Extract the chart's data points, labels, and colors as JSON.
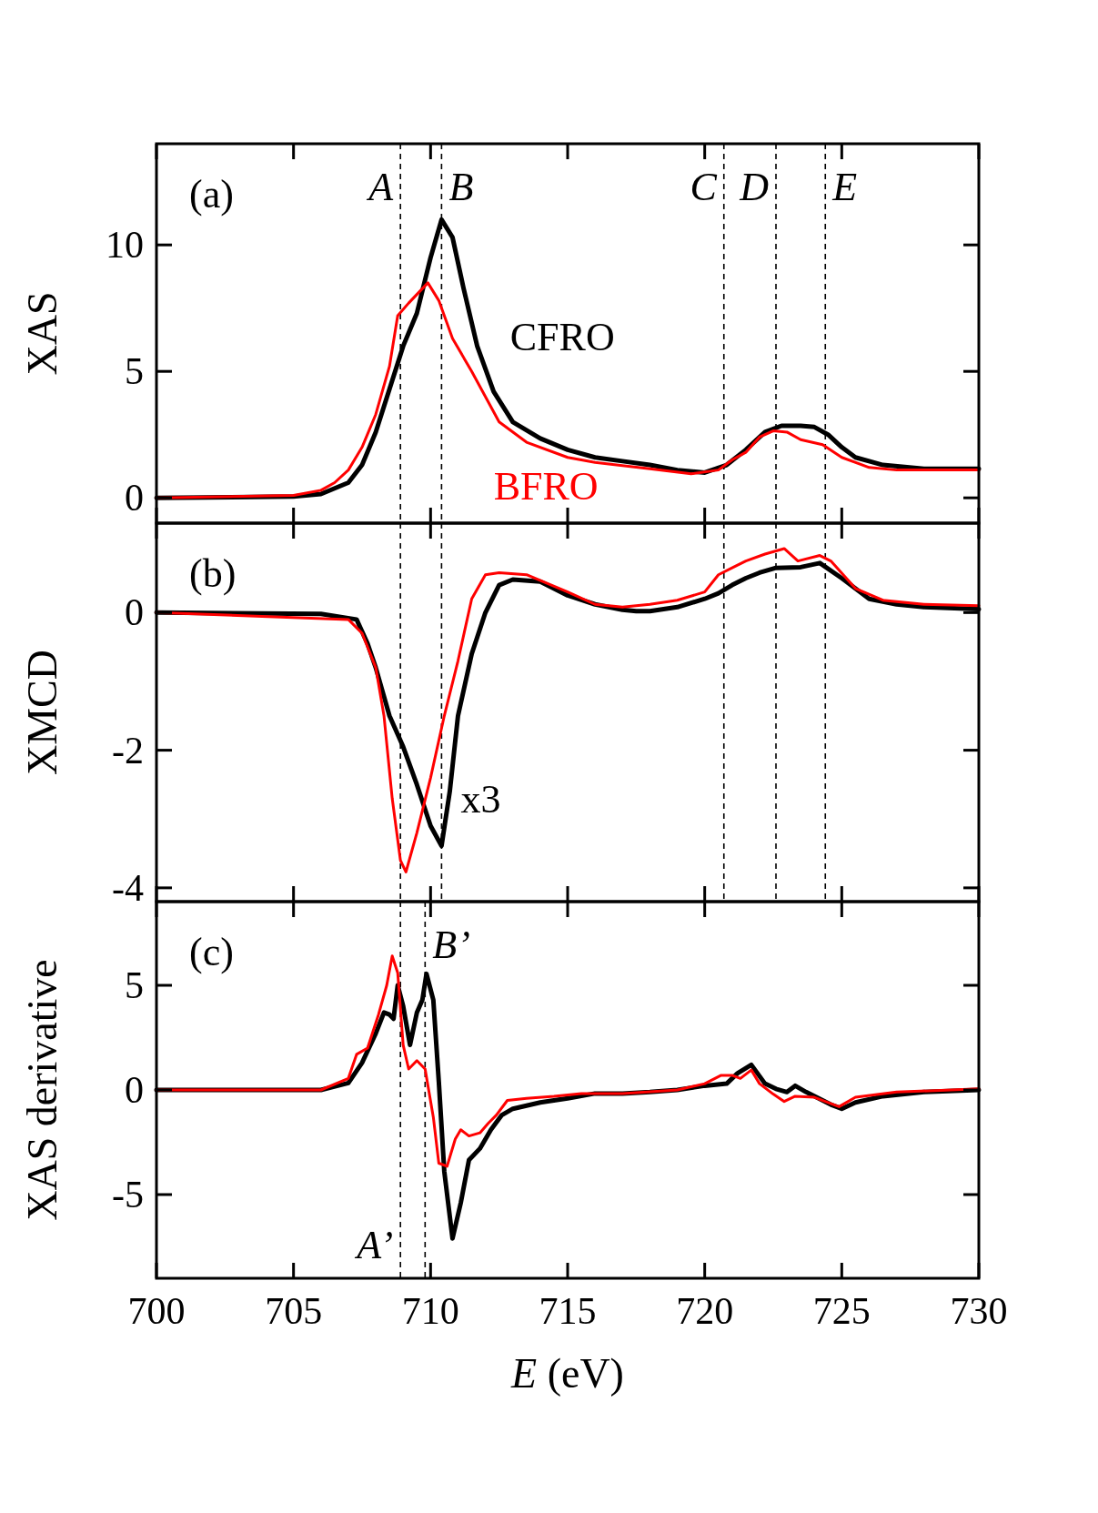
{
  "chart_data": [
    {
      "type": "line",
      "title": "(a)",
      "ylabel": "XAS",
      "xlim": [
        700,
        730
      ],
      "ylim": [
        -1,
        14
      ],
      "xticks": [
        700,
        705,
        710,
        715,
        720,
        725,
        730
      ],
      "yticks": [
        0,
        5,
        10
      ],
      "tick_labels": "y",
      "grid": false,
      "legend": false,
      "marker": "none",
      "line_style": "solid",
      "ref_lines": [
        {
          "axis": "x",
          "value": 708.9,
          "label": "A",
          "line_style": "dashed"
        },
        {
          "axis": "x",
          "value": 710.4,
          "label": "B",
          "line_style": "dashed"
        },
        {
          "axis": "x",
          "value": 720.7,
          "label": "C",
          "line_style": "dashed"
        },
        {
          "axis": "x",
          "value": 722.6,
          "label": "D",
          "line_style": "dashed"
        },
        {
          "axis": "x",
          "value": 724.4,
          "label": "E",
          "line_style": "dashed"
        }
      ],
      "series": [
        {
          "name": "CFRO",
          "color": "#000000",
          "x": [
            700,
            705,
            706,
            707,
            707.5,
            708,
            708.5,
            709,
            709.5,
            710,
            710.4,
            710.8,
            711.2,
            711.7,
            712.3,
            713,
            714,
            715,
            716,
            717,
            718,
            719,
            720,
            720.8,
            721.5,
            722.2,
            722.8,
            723.5,
            724,
            724.5,
            725,
            725.5,
            726.5,
            728,
            730
          ],
          "values": [
            0,
            0.05,
            0.15,
            0.6,
            1.3,
            2.6,
            4.3,
            6.0,
            7.3,
            9.5,
            11.0,
            10.3,
            8.3,
            6.0,
            4.2,
            3.0,
            2.35,
            1.9,
            1.6,
            1.45,
            1.3,
            1.1,
            1.0,
            1.3,
            1.9,
            2.6,
            2.85,
            2.85,
            2.8,
            2.5,
            2.0,
            1.6,
            1.3,
            1.15,
            1.15
          ]
        },
        {
          "name": "BFRO",
          "color": "#ff0000",
          "x": [
            700,
            705,
            706,
            706.5,
            707,
            707.5,
            708,
            708.5,
            708.8,
            709.2,
            709.9,
            710.3,
            710.8,
            711.5,
            712.5,
            713.5,
            715,
            716,
            718,
            719.5,
            720.5,
            721,
            721.5,
            722,
            722.5,
            723,
            723.5,
            724.3,
            725,
            726,
            727,
            730
          ],
          "values": [
            0,
            0.1,
            0.3,
            0.6,
            1.1,
            2.0,
            3.3,
            5.2,
            7.2,
            7.7,
            8.5,
            7.8,
            6.3,
            5.0,
            3.0,
            2.2,
            1.6,
            1.4,
            1.15,
            0.95,
            1.1,
            1.5,
            1.8,
            2.4,
            2.65,
            2.6,
            2.3,
            2.1,
            1.6,
            1.2,
            1.1,
            1.1
          ]
        }
      ]
    },
    {
      "type": "line",
      "title": "(b)",
      "ylabel": "XMCD",
      "xlim": [
        700,
        730
      ],
      "ylim": [
        -4.2,
        1.3
      ],
      "xticks": [
        700,
        705,
        710,
        715,
        720,
        725,
        730
      ],
      "yticks": [
        -4,
        -2,
        0
      ],
      "tick_labels": "y",
      "grid": false,
      "legend": false,
      "marker": "none",
      "line_style": "solid",
      "ref_lines": [
        {
          "axis": "x",
          "value": 708.9,
          "line_style": "dashed"
        },
        {
          "axis": "x",
          "value": 710.4,
          "line_style": "dashed"
        },
        {
          "axis": "x",
          "value": 720.7,
          "line_style": "dashed"
        },
        {
          "axis": "x",
          "value": 722.6,
          "line_style": "dashed"
        },
        {
          "axis": "x",
          "value": 724.4,
          "line_style": "dashed"
        }
      ],
      "annotations": [
        "x3"
      ],
      "series": [
        {
          "color": "#000000",
          "x": [
            700,
            706,
            707.3,
            707.7,
            708,
            708.5,
            709,
            709.5,
            710,
            710.4,
            710.7,
            711,
            711.5,
            712,
            712.5,
            713,
            714,
            715,
            716,
            717,
            717.5,
            718,
            719,
            720,
            720.5,
            721,
            721.5,
            722,
            722.6,
            723.5,
            724.2,
            725,
            726,
            727,
            728,
            730
          ],
          "values": [
            0,
            -0.02,
            -0.1,
            -0.45,
            -0.8,
            -1.5,
            -1.95,
            -2.5,
            -3.1,
            -3.39,
            -2.6,
            -1.5,
            -0.6,
            0,
            0.4,
            0.48,
            0.45,
            0.25,
            0.12,
            0.04,
            0.02,
            0.02,
            0.08,
            0.2,
            0.28,
            0.4,
            0.5,
            0.58,
            0.65,
            0.66,
            0.72,
            0.5,
            0.2,
            0.12,
            0.08,
            0.05
          ]
        },
        {
          "color": "#ff0000",
          "x": [
            700,
            707,
            707.5,
            708,
            708.3,
            708.6,
            708.9,
            709.1,
            709.5,
            710,
            710.5,
            711,
            711.5,
            712,
            712.5,
            713.5,
            715,
            716,
            717,
            718,
            719,
            720,
            720.5,
            721,
            721.5,
            722.2,
            722.9,
            723.4,
            724.2,
            724.6,
            725.5,
            726.5,
            728,
            730
          ],
          "values": [
            0,
            -0.1,
            -0.3,
            -0.8,
            -1.5,
            -2.7,
            -3.6,
            -3.77,
            -3.2,
            -2.4,
            -1.5,
            -0.7,
            0.2,
            0.55,
            0.58,
            0.55,
            0.3,
            0.12,
            0.08,
            0.12,
            0.18,
            0.3,
            0.55,
            0.65,
            0.75,
            0.85,
            0.93,
            0.75,
            0.83,
            0.75,
            0.35,
            0.18,
            0.12,
            0.1
          ]
        }
      ]
    },
    {
      "type": "line",
      "title": "(c)",
      "ylabel": "XAS derivative",
      "xlabel": "E (eV)",
      "xlim": [
        700,
        730
      ],
      "ylim": [
        -9,
        9
      ],
      "xticks": [
        700,
        705,
        710,
        715,
        720,
        725,
        730
      ],
      "yticks": [
        -5,
        0,
        5
      ],
      "grid": false,
      "legend": false,
      "marker": "none",
      "line_style": "solid",
      "ref_lines": [
        {
          "axis": "x",
          "value": 708.9,
          "label": "A’",
          "line_style": "dashed"
        },
        {
          "axis": "x",
          "value": 709.8,
          "label": "B’",
          "line_style": "dashed"
        }
      ],
      "series": [
        {
          "color": "#000000",
          "x": [
            700,
            706,
            707,
            707.5,
            708,
            708.3,
            708.5,
            708.65,
            708.8,
            709,
            709.25,
            709.5,
            709.7,
            709.85,
            710.1,
            710.3,
            710.5,
            710.8,
            711.1,
            711.4,
            711.8,
            712.2,
            712.6,
            713,
            714,
            715,
            716,
            717,
            718,
            719,
            720,
            720.8,
            721.2,
            721.7,
            722.2,
            722.6,
            723,
            723.3,
            723.7,
            724.6,
            725,
            725.5,
            726.5,
            728,
            730
          ],
          "values": [
            0,
            0,
            0.33,
            1.3,
            2.7,
            3.7,
            3.6,
            3.4,
            5.0,
            4.0,
            2.15,
            3.7,
            4.3,
            5.55,
            4.3,
            0.4,
            -3.9,
            -7.1,
            -5.4,
            -3.35,
            -2.8,
            -1.9,
            -1.2,
            -0.9,
            -0.6,
            -0.4,
            -0.17,
            -0.17,
            -0.1,
            0,
            0.2,
            0.3,
            0.8,
            1.2,
            0.3,
            0.05,
            -0.1,
            0.2,
            -0.1,
            -0.7,
            -0.9,
            -0.6,
            -0.3,
            -0.1,
            0
          ]
        },
        {
          "color": "#ff0000",
          "x": [
            700,
            706,
            707,
            707.3,
            707.7,
            708.1,
            708.4,
            708.6,
            708.8,
            709,
            709.2,
            709.5,
            709.8,
            710.1,
            710.3,
            710.6,
            710.9,
            711.1,
            711.4,
            711.8,
            712.1,
            712.4,
            712.8,
            713.5,
            714.5,
            715.5,
            717,
            719,
            720,
            720.6,
            721,
            721.3,
            721.7,
            722,
            722.5,
            722.9,
            723.3,
            724,
            724.9,
            725.5,
            727,
            730
          ],
          "values": [
            0,
            0,
            0.55,
            1.7,
            2.0,
            3.6,
            5.0,
            6.4,
            5.6,
            2.15,
            1.0,
            1.4,
            1.0,
            -1.3,
            -3.5,
            -3.65,
            -2.35,
            -1.9,
            -2.2,
            -2.05,
            -1.6,
            -1.2,
            -0.5,
            -0.4,
            -0.3,
            -0.17,
            -0.17,
            0,
            0.3,
            0.7,
            0.7,
            0.55,
            0.95,
            0.3,
            -0.2,
            -0.55,
            -0.3,
            -0.35,
            -0.8,
            -0.35,
            -0.1,
            0.05
          ]
        }
      ]
    }
  ]
}
